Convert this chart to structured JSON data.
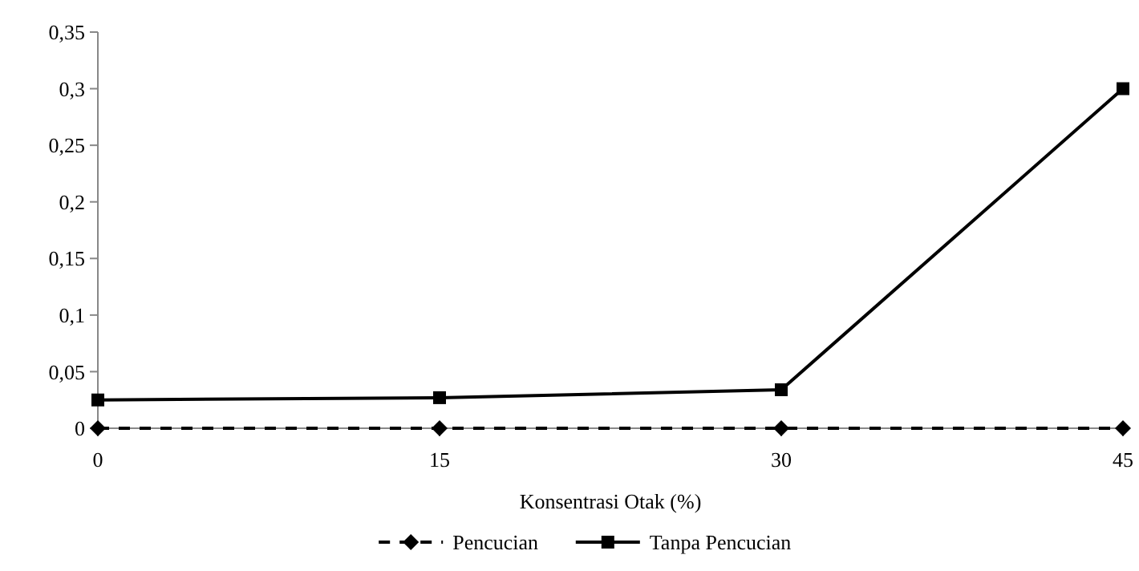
{
  "chart_data": {
    "type": "line",
    "xlabel": "Konsentrasi Otak (%)",
    "x": [
      0,
      15,
      30,
      45
    ],
    "xlim": [
      0,
      45
    ],
    "xticks": [
      0,
      15,
      30,
      45
    ],
    "ylim": [
      0,
      0.35
    ],
    "yticks": [
      {
        "value": 0,
        "label": "0"
      },
      {
        "value": 0.05,
        "label": "0,05"
      },
      {
        "value": 0.1,
        "label": "0,1"
      },
      {
        "value": 0.15,
        "label": "0,15"
      },
      {
        "value": 0.2,
        "label": "0,2"
      },
      {
        "value": 0.25,
        "label": "0,25"
      },
      {
        "value": 0.3,
        "label": "0,3"
      },
      {
        "value": 0.35,
        "label": "0,35"
      }
    ],
    "grid": false,
    "legend": "bottom",
    "series": [
      {
        "name": "Pencucian",
        "color": "#000000",
        "values": [
          0,
          0,
          0,
          0
        ],
        "marker": "diamond",
        "line_style": "dashed"
      },
      {
        "name": "Tanpa Pencucian",
        "color": "#000000",
        "values": [
          0.025,
          0.027,
          0.034,
          0.3
        ],
        "marker": "square",
        "line_style": "solid"
      }
    ]
  }
}
